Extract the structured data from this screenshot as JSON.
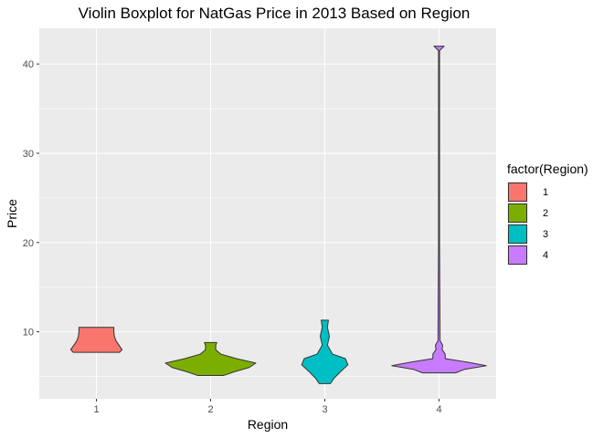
{
  "chart_data": {
    "type": "violin",
    "title": "Violin Boxplot for NatGas Price in 2013 Based on Region",
    "xlabel": "Region",
    "ylabel": "Price",
    "categories": [
      "1",
      "2",
      "3",
      "4"
    ],
    "yticks": [
      10,
      20,
      30,
      40
    ],
    "ylim": [
      2.5,
      44
    ],
    "grid": true,
    "legend": {
      "title": "factor(Region)",
      "position": "right",
      "entries": [
        "1",
        "2",
        "3",
        "4"
      ]
    },
    "colors": [
      "#F8766D",
      "#7CAE00",
      "#00BFC4",
      "#C77CFF"
    ],
    "series": [
      {
        "category": "1",
        "profile": [
          [
            7.7,
            0.45
          ],
          [
            8.0,
            0.5
          ],
          [
            8.5,
            0.44
          ],
          [
            9.0,
            0.38
          ],
          [
            9.5,
            0.35
          ],
          [
            10.0,
            0.34
          ],
          [
            10.5,
            0.34
          ]
        ]
      },
      {
        "category": "2",
        "profile": [
          [
            5.1,
            0.25
          ],
          [
            5.5,
            0.45
          ],
          [
            6.0,
            0.75
          ],
          [
            6.5,
            0.88
          ],
          [
            7.0,
            0.5
          ],
          [
            7.5,
            0.2
          ],
          [
            8.0,
            0.1
          ],
          [
            8.5,
            0.1
          ],
          [
            8.8,
            0.12
          ]
        ]
      },
      {
        "category": "3",
        "profile": [
          [
            4.2,
            0.11
          ],
          [
            4.8,
            0.18
          ],
          [
            5.5,
            0.3
          ],
          [
            6.3,
            0.45
          ],
          [
            7.0,
            0.4
          ],
          [
            7.5,
            0.15
          ],
          [
            8.5,
            0.05
          ],
          [
            9.5,
            0.09
          ],
          [
            10.5,
            0.05
          ],
          [
            11.3,
            0.07
          ]
        ]
      },
      {
        "category": "4",
        "profile": [
          [
            5.4,
            0.32
          ],
          [
            5.8,
            0.5
          ],
          [
            6.2,
            0.92
          ],
          [
            6.6,
            0.55
          ],
          [
            7.0,
            0.12
          ],
          [
            7.5,
            0.12
          ],
          [
            8.0,
            0.06
          ],
          [
            8.5,
            0.07
          ],
          [
            9.0,
            0.02
          ],
          [
            20.0,
            0.01
          ],
          [
            41.5,
            0.01
          ],
          [
            42.0,
            0.1
          ]
        ]
      }
    ]
  }
}
